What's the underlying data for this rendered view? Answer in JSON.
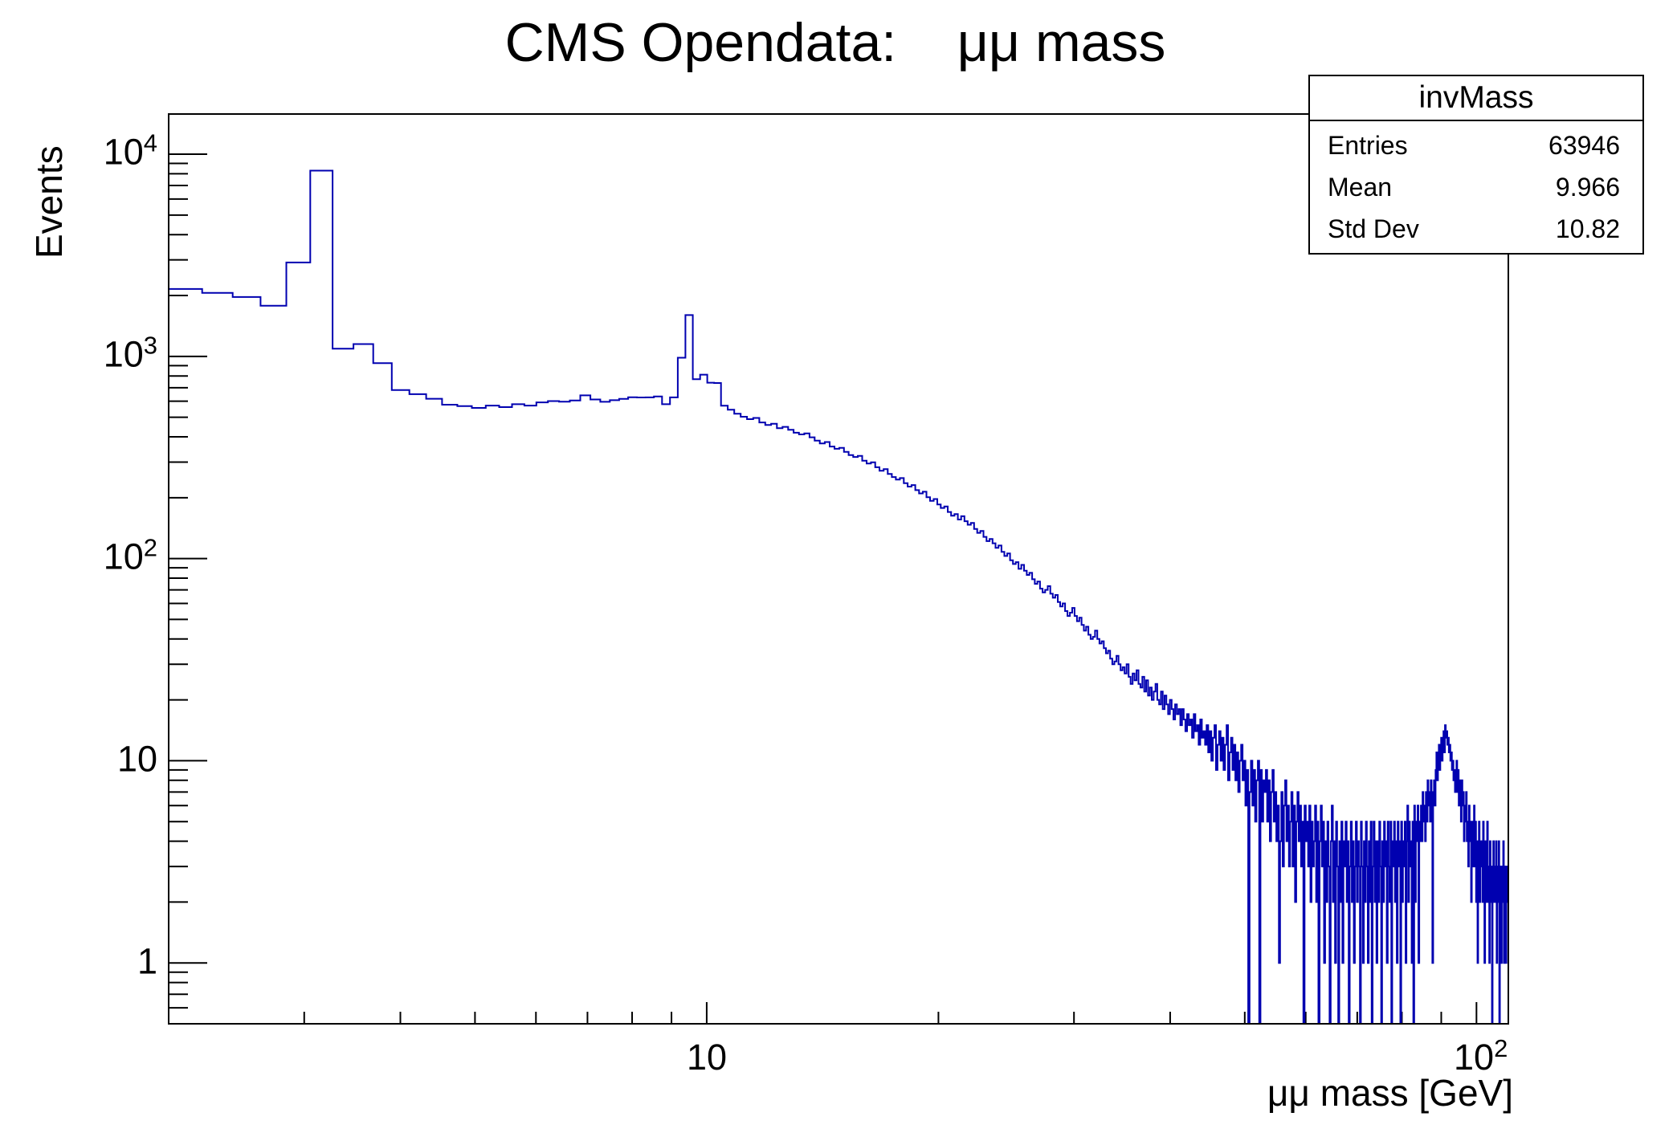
{
  "title": "CMS Opendata:    μμ mass",
  "stats": {
    "title": "invMass",
    "rows": [
      {
        "label": "Entries",
        "value": "63946"
      },
      {
        "label": "Mean",
        "value": "9.966"
      },
      {
        "label": "Std Dev",
        "value": "10.82"
      }
    ]
  },
  "axes": {
    "x": {
      "title": "μμ mass [GeV]",
      "scale": "log",
      "tick_labels": [
        {
          "base": "10",
          "exp": ""
        },
        {
          "base": "10",
          "exp": "2"
        }
      ]
    },
    "y": {
      "title": "Events",
      "scale": "log",
      "tick_labels": [
        {
          "base": "10",
          "exp": "4"
        },
        {
          "base": "10",
          "exp": "3"
        },
        {
          "base": "10",
          "exp": "2"
        },
        {
          "base": "10",
          "exp": ""
        },
        {
          "base": "1",
          "exp": ""
        }
      ]
    }
  },
  "colors": {
    "histogram_line": "#0000b0",
    "frame": "#000000",
    "background": "#ffffff"
  },
  "chart_data": {
    "type": "bar",
    "subtype": "step-histogram",
    "title": "CMS Opendata:    μμ mass",
    "xlabel": "μμ mass [GeV]",
    "ylabel": "Events",
    "xlim": [
      2,
      110
    ],
    "ylim": [
      0.5,
      15800
    ],
    "log_x": true,
    "log_y": true,
    "grid": false,
    "legend": false,
    "peaks": {
      "jpsi_gev": 3.1,
      "upsilon_gev": 9.46,
      "z_gev": 91.2
    },
    "bin_min_gev": 2,
    "bin_max_gev": 110,
    "bin_count": 512,
    "values": [
      2154,
      2060,
      1966,
      1780,
      2912,
      8294,
      1092,
      1150,
      926,
      681,
      650,
      617,
      577,
      568,
      556,
      571,
      561,
      580,
      571,
      592,
      601,
      597,
      605,
      641,
      612,
      596,
      607,
      616,
      628,
      626,
      627,
      633,
      580,
      627,
      985,
      1601,
      771,
      812,
      741,
      738,
      570,
      545,
      520,
      503,
      489,
      496,
      471,
      458,
      464,
      441,
      448,
      433,
      419,
      411,
      416,
      398,
      383,
      371,
      377,
      358,
      349,
      353,
      337,
      325,
      318,
      322,
      305,
      295,
      299,
      283,
      272,
      277,
      262,
      253,
      246,
      250,
      236,
      227,
      231,
      218,
      210,
      214,
      201,
      193,
      197,
      185,
      178,
      181,
      170,
      163,
      166,
      156,
      162,
      153,
      147,
      150,
      140,
      134,
      137,
      128,
      122,
      125,
      119,
      113,
      116,
      108,
      103,
      106,
      98,
      94,
      96,
      89,
      93,
      87,
      83,
      85,
      79,
      75,
      77,
      71,
      68,
      70,
      73,
      67,
      64,
      66,
      61,
      58,
      60,
      55,
      52,
      54,
      57,
      52,
      49,
      51,
      47,
      44,
      46,
      42,
      40,
      41,
      44,
      40,
      38,
      39,
      36,
      34,
      35,
      32,
      30,
      31,
      33,
      30,
      28,
      29,
      27,
      30,
      26,
      24,
      27,
      25,
      28,
      24,
      23,
      26,
      22,
      25,
      21,
      23,
      20,
      22,
      24,
      20,
      19,
      22,
      18,
      21,
      19,
      17,
      20,
      18,
      16,
      19,
      17,
      18,
      15,
      18,
      16,
      14,
      17,
      15,
      16,
      13,
      17,
      14,
      15,
      12,
      16,
      13,
      14,
      12,
      15,
      11,
      14,
      10,
      13,
      15,
      9,
      12,
      14,
      10,
      13,
      9,
      12,
      15,
      8,
      11,
      13,
      9,
      12,
      8,
      11,
      7,
      10,
      12,
      8,
      10,
      6,
      9,
      0,
      7,
      10,
      6,
      9,
      5,
      8,
      10,
      0,
      9,
      5,
      8,
      7,
      9,
      5,
      8,
      4,
      7,
      9,
      5,
      7,
      4,
      6,
      1,
      4,
      7,
      3,
      6,
      8,
      4,
      6,
      3,
      5,
      7,
      3,
      6,
      2,
      5,
      7,
      4,
      6,
      3,
      5,
      0,
      6,
      4,
      5,
      3,
      6,
      2,
      5,
      3,
      4,
      6,
      2,
      5,
      0,
      4,
      6,
      3,
      5,
      1,
      4,
      2,
      5,
      3,
      0,
      4,
      6,
      2,
      4,
      1,
      5,
      3,
      0,
      4,
      2,
      5,
      1,
      4,
      3,
      5,
      2,
      4,
      0,
      3,
      5,
      2,
      4,
      1,
      3,
      5,
      2,
      4,
      3,
      0,
      5,
      3,
      1,
      4,
      2,
      5,
      3,
      1,
      4,
      2,
      5,
      0,
      3,
      5,
      2,
      4,
      1,
      4,
      2,
      5,
      3,
      0,
      4,
      2,
      5,
      3,
      4,
      1,
      5,
      3,
      2,
      5,
      0,
      4,
      3,
      5,
      2,
      4,
      1,
      5,
      3,
      4,
      0,
      5,
      2,
      4,
      3,
      5,
      1,
      4,
      6,
      2,
      5,
      3,
      4,
      1,
      5,
      0,
      6,
      2,
      5,
      4,
      6,
      1,
      5,
      4,
      6,
      4,
      7,
      5,
      6,
      4,
      7,
      5,
      8,
      6,
      7,
      5,
      8,
      6,
      1,
      7,
      8,
      6,
      9,
      11,
      8,
      10,
      12,
      9,
      11,
      13,
      10,
      12,
      14,
      11,
      15,
      13,
      14,
      12,
      13,
      11,
      12,
      10,
      11,
      9,
      10,
      8,
      9,
      7,
      8,
      10,
      7,
      9,
      6,
      8,
      7,
      5,
      8,
      6,
      7,
      4,
      6,
      5,
      7,
      4,
      5,
      3,
      6,
      4,
      5,
      2,
      5,
      3,
      4,
      6,
      3,
      5,
      2,
      4,
      1,
      3,
      5,
      2,
      4,
      3,
      4,
      2,
      5,
      3,
      1,
      4,
      2,
      3,
      5,
      2,
      3,
      1,
      4,
      2,
      3,
      0,
      3,
      4,
      2,
      3,
      2,
      4,
      1,
      3,
      2,
      4,
      0,
      2,
      3,
      1,
      3,
      2,
      4,
      1,
      2,
      3,
      1,
      2,
      3,
      2
    ]
  }
}
